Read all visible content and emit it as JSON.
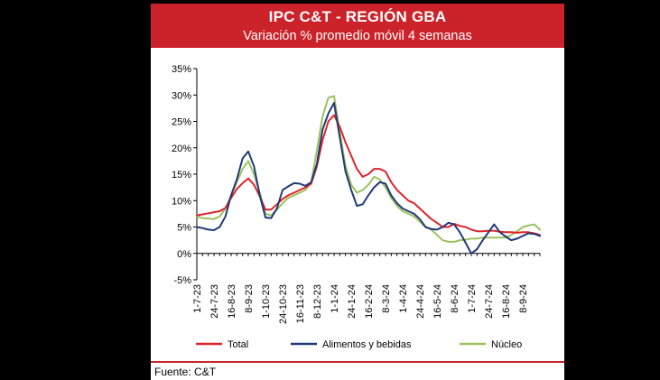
{
  "header": {
    "title": "IPC C&T - REGIÓN GBA",
    "subtitle": "Variación % promedio móvil 4 semanas"
  },
  "footer": {
    "source": "Fuente: C&T"
  },
  "colors": {
    "banner": "#cc2229",
    "total": "#e0232b",
    "alimentos": "#1f3a78",
    "nucleo": "#9cc25e"
  },
  "chart_data": {
    "type": "line",
    "title": "IPC C&T - REGIÓN GBA",
    "subtitle": "Variación % promedio móvil 4 semanas",
    "xlabel": "",
    "ylabel": "",
    "ylim": [
      -5,
      35
    ],
    "yticks": [
      -5,
      0,
      5,
      10,
      15,
      20,
      25,
      30,
      35
    ],
    "ytick_labels": [
      "-5%",
      "0%",
      "5%",
      "10%",
      "15%",
      "20%",
      "25%",
      "30%",
      "35%"
    ],
    "grid": false,
    "legend_position": "bottom",
    "x_count": 61,
    "x_tick_labels": [
      {
        "i": 0,
        "label": "1-7-23"
      },
      {
        "i": 3,
        "label": "24-7-23"
      },
      {
        "i": 6,
        "label": "16-8-23"
      },
      {
        "i": 9,
        "label": "8-9-23"
      },
      {
        "i": 12,
        "label": "1-10-23"
      },
      {
        "i": 15,
        "label": "24-10-23"
      },
      {
        "i": 18,
        "label": "16-11-23"
      },
      {
        "i": 21,
        "label": "8-12-23"
      },
      {
        "i": 24,
        "label": "1-1-24"
      },
      {
        "i": 27,
        "label": "24-1-24"
      },
      {
        "i": 30,
        "label": "16-2-24"
      },
      {
        "i": 33,
        "label": "8-3-24"
      },
      {
        "i": 36,
        "label": "1-4-24"
      },
      {
        "i": 39,
        "label": "24-4-24"
      },
      {
        "i": 42,
        "label": "16-5-24"
      },
      {
        "i": 45,
        "label": "8-6-24"
      },
      {
        "i": 48,
        "label": "1-7-24"
      },
      {
        "i": 51,
        "label": "24-7-24"
      },
      {
        "i": 54,
        "label": "16-8-24"
      },
      {
        "i": 57,
        "label": "8-9-24"
      }
    ],
    "series": [
      {
        "name": "Total",
        "color": "#e0232b",
        "values": [
          7.2,
          7.4,
          7.6,
          7.8,
          8.0,
          8.6,
          10.5,
          12.2,
          13.3,
          14.2,
          13.0,
          10.8,
          8.3,
          8.3,
          9.3,
          10.3,
          11.0,
          11.5,
          12.0,
          12.5,
          13.2,
          16.5,
          21.5,
          25.0,
          26.2,
          24.0,
          21.0,
          18.5,
          16.0,
          14.5,
          15.0,
          16.0,
          16.0,
          15.5,
          13.5,
          12.0,
          11.0,
          10.0,
          9.5,
          8.5,
          7.5,
          6.5,
          5.8,
          5.0,
          5.0,
          5.6,
          5.2,
          5.0,
          4.5,
          4.2,
          4.2,
          4.3,
          4.3,
          4.1,
          4.0,
          4.0,
          3.9,
          4.0,
          4.0,
          3.8,
          3.5
        ]
      },
      {
        "name": "Alimentos y bebidas",
        "color": "#1f3a78",
        "values": [
          5.0,
          4.8,
          4.5,
          4.4,
          5.0,
          7.0,
          11.0,
          14.0,
          18.0,
          19.3,
          16.5,
          11.0,
          6.8,
          6.7,
          8.5,
          12.0,
          12.7,
          13.3,
          13.2,
          12.8,
          13.5,
          17.0,
          23.5,
          26.5,
          28.5,
          22.0,
          15.5,
          12.0,
          9.0,
          9.3,
          11.0,
          12.5,
          13.5,
          13.2,
          11.0,
          9.5,
          8.5,
          8.0,
          7.5,
          6.5,
          5.0,
          4.6,
          4.5,
          5.0,
          5.8,
          5.5,
          4.0,
          2.0,
          0.0,
          0.8,
          2.5,
          4.0,
          5.5,
          4.0,
          3.2,
          2.5,
          2.8,
          3.3,
          3.8,
          3.7,
          3.3
        ]
      },
      {
        "name": "Núcleo",
        "color": "#9cc25e",
        "values": [
          7.0,
          6.7,
          6.6,
          6.5,
          7.0,
          8.5,
          11.0,
          13.5,
          16.0,
          17.5,
          15.0,
          11.5,
          7.5,
          7.2,
          8.3,
          9.5,
          10.5,
          11.0,
          11.5,
          12.0,
          13.5,
          19.5,
          26.0,
          29.5,
          29.8,
          23.0,
          16.5,
          13.0,
          11.5,
          12.0,
          13.0,
          14.5,
          14.0,
          12.5,
          10.5,
          9.0,
          8.0,
          7.5,
          7.0,
          6.0,
          5.0,
          4.5,
          3.5,
          2.5,
          2.2,
          2.2,
          2.5,
          2.6,
          2.8,
          2.8,
          3.0,
          3.0,
          3.0,
          3.0,
          3.0,
          3.5,
          4.2,
          5.0,
          5.3,
          5.5,
          4.5
        ]
      }
    ]
  }
}
